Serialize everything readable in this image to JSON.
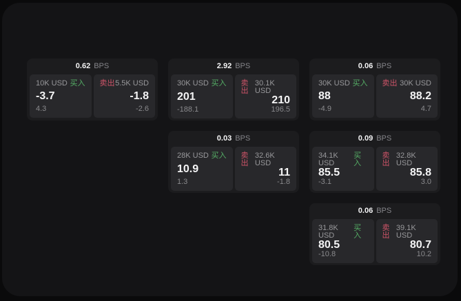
{
  "labels": {
    "bps_unit": "BPS",
    "buy": "买入",
    "sell": "卖出"
  },
  "colors": {
    "page_bg": "#0a0a0b",
    "card_bg": "#141416",
    "panel_bg": "#1c1c1e",
    "subcard_bg": "#28282b",
    "buy_green": "#55ad65",
    "sell_red": "#cd5468",
    "value_text": "#f4f4f5",
    "muted_text": "#98989b"
  },
  "panels": [
    {
      "bps": "0.62",
      "buy": {
        "amount": "10K USD",
        "value": "-3.7",
        "sub": "4.3"
      },
      "sell": {
        "amount": "5.5K USD",
        "value": "-1.8",
        "sub": "-2.6"
      }
    },
    {
      "bps": "2.92",
      "buy": {
        "amount": "30K USD",
        "value": "201",
        "sub": "-188.1"
      },
      "sell": {
        "amount": "30.1K USD",
        "value": "210",
        "sub": "196.5"
      }
    },
    {
      "bps": "0.06",
      "buy": {
        "amount": "30K USD",
        "value": "88",
        "sub": "-4.9"
      },
      "sell": {
        "amount": "30K USD",
        "value": "88.2",
        "sub": "4.7"
      }
    },
    {
      "bps": "0.03",
      "buy": {
        "amount": "28K USD",
        "value": "10.9",
        "sub": "1.3"
      },
      "sell": {
        "amount": "32.6K USD",
        "value": "11",
        "sub": "-1.8"
      }
    },
    {
      "bps": "0.09",
      "buy": {
        "amount": "34.1K USD",
        "value": "85.5",
        "sub": "-3.1"
      },
      "sell": {
        "amount": "32.8K USD",
        "value": "85.8",
        "sub": "3.0"
      }
    },
    {
      "bps": "0.06",
      "buy": {
        "amount": "31.8K USD",
        "value": "80.5",
        "sub": "-10.8"
      },
      "sell": {
        "amount": "39.1K USD",
        "value": "80.7",
        "sub": "10.2"
      }
    }
  ]
}
